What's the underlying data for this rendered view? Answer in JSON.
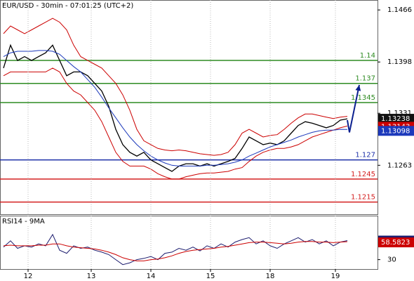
{
  "chart_data": [
    {
      "type": "line",
      "title": "EUR/USD - 30min - 07:01:25 (UTC+2)",
      "x": [
        0,
        1,
        2,
        3,
        4,
        5,
        6,
        7,
        8,
        9,
        10,
        11,
        12,
        13,
        14,
        15,
        16,
        17,
        18,
        19,
        20,
        21,
        22,
        23,
        24,
        25,
        26,
        27,
        28,
        29,
        30,
        31,
        32,
        33,
        34,
        35,
        36,
        37,
        38,
        39,
        40,
        41,
        42,
        43,
        44,
        45,
        46,
        47,
        48,
        49
      ],
      "xlim": [
        -0.5,
        53.3
      ],
      "series": [
        {
          "name": "close",
          "color": "#000000",
          "box": true,
          "values": [
            1.139,
            1.142,
            1.14,
            1.1405,
            1.14,
            1.1405,
            1.141,
            1.142,
            1.14,
            1.138,
            1.1385,
            1.1385,
            1.138,
            1.137,
            1.136,
            1.134,
            1.131,
            1.129,
            1.128,
            1.1275,
            1.128,
            1.127,
            1.1265,
            1.126,
            1.1255,
            1.1262,
            1.1265,
            1.1265,
            1.1262,
            1.1265,
            1.1262,
            1.1265,
            1.1268,
            1.1272,
            1.1285,
            1.13,
            1.1295,
            1.129,
            1.1292,
            1.129,
            1.1295,
            1.1305,
            1.1315,
            1.132,
            1.1318,
            1.1315,
            1.1312,
            1.1315,
            1.1322,
            1.13238
          ]
        },
        {
          "name": "upper",
          "color": "#cc0000",
          "box": false,
          "values": [
            1.1435,
            1.1445,
            1.144,
            1.1435,
            1.144,
            1.1445,
            1.145,
            1.1455,
            1.145,
            1.144,
            1.142,
            1.1405,
            1.14,
            1.1395,
            1.139,
            1.138,
            1.137,
            1.1355,
            1.1335,
            1.131,
            1.1295,
            1.129,
            1.1285,
            1.1283,
            1.1282,
            1.1283,
            1.1282,
            1.128,
            1.1278,
            1.1277,
            1.1276,
            1.1277,
            1.128,
            1.129,
            1.1305,
            1.131,
            1.1305,
            1.13,
            1.1302,
            1.1303,
            1.131,
            1.1318,
            1.1325,
            1.133,
            1.133,
            1.1328,
            1.1326,
            1.1324,
            1.1326,
            1.1327
          ]
        },
        {
          "name": "lower",
          "color": "#cc0000",
          "box": true,
          "values": [
            1.138,
            1.1385,
            1.1385,
            1.1385,
            1.1385,
            1.1385,
            1.1385,
            1.139,
            1.1385,
            1.137,
            1.136,
            1.1355,
            1.1345,
            1.1335,
            1.132,
            1.13,
            1.128,
            1.1268,
            1.1262,
            1.1262,
            1.1262,
            1.1258,
            1.1252,
            1.1248,
            1.1245,
            1.1245,
            1.1248,
            1.125,
            1.1252,
            1.1253,
            1.1253,
            1.1254,
            1.1255,
            1.1258,
            1.126,
            1.1268,
            1.1275,
            1.128,
            1.1283,
            1.1285,
            1.1285,
            1.1287,
            1.129,
            1.1295,
            1.13,
            1.1303,
            1.1306,
            1.1309,
            1.1312,
            1.13143
          ]
        },
        {
          "name": "ma",
          "color": "#1c39bb",
          "box": true,
          "values": [
            1.1405,
            1.141,
            1.1412,
            1.1412,
            1.1412,
            1.1413,
            1.1413,
            1.1412,
            1.1408,
            1.14,
            1.1392,
            1.1385,
            1.1375,
            1.1365,
            1.1352,
            1.1338,
            1.1325,
            1.1312,
            1.13,
            1.129,
            1.1282,
            1.1275,
            1.127,
            1.1266,
            1.1263,
            1.1262,
            1.1262,
            1.1262,
            1.1262,
            1.1263,
            1.1263,
            1.1264,
            1.1265,
            1.1267,
            1.127,
            1.1275,
            1.1279,
            1.1283,
            1.1287,
            1.129,
            1.1293,
            1.1296,
            1.13,
            1.1303,
            1.1306,
            1.1308,
            1.1309,
            1.1309,
            1.131,
            1.13098
          ]
        }
      ],
      "projection": {
        "color": "#0a1f8f",
        "x": [
          49,
          49.3,
          50.7
        ],
        "values": [
          1.1322,
          1.1306,
          1.1368
        ]
      },
      "levels": [
        {
          "value": 1.14,
          "color": "#2e8b22"
        },
        {
          "value": 1.137,
          "color": "#2e8b22"
        },
        {
          "value": 1.1345,
          "color": "#2e8b22"
        },
        {
          "value": 1.127,
          "color": "#1c2fa8"
        },
        {
          "value": 1.1245,
          "color": "#d42020"
        },
        {
          "value": 1.1215,
          "color": "#d42020"
        }
      ],
      "ylim": [
        1.1199,
        1.1479
      ],
      "yticks": [
        1.1466,
        1.1398,
        1.1331,
        1.1263
      ]
    },
    {
      "type": "line",
      "title": "RSI14 - 9MA",
      "x": [
        0,
        1,
        2,
        3,
        4,
        5,
        6,
        7,
        8,
        9,
        10,
        11,
        12,
        13,
        14,
        15,
        16,
        17,
        18,
        19,
        20,
        21,
        22,
        23,
        24,
        25,
        26,
        27,
        28,
        29,
        30,
        31,
        32,
        33,
        34,
        35,
        36,
        37,
        38,
        39,
        40,
        41,
        42,
        43,
        44,
        45,
        46,
        47,
        48,
        49
      ],
      "xlim": [
        -0.5,
        53.3
      ],
      "series": [
        {
          "name": "rsi",
          "color": "#1c1c6e",
          "box": true,
          "values": [
            50,
            60,
            48,
            52,
            50,
            55,
            52,
            70,
            45,
            40,
            52,
            48,
            50,
            45,
            42,
            38,
            30,
            22,
            25,
            30,
            32,
            35,
            30,
            40,
            42,
            48,
            45,
            50,
            44,
            52,
            48,
            55,
            50,
            58,
            62,
            65,
            55,
            60,
            52,
            48,
            55,
            60,
            65,
            58,
            62,
            55,
            60,
            52,
            58,
            60.3401
          ]
        },
        {
          "name": "rsi-ma",
          "color": "#cc0000",
          "box": true,
          "values": [
            52,
            53,
            52,
            52,
            52,
            53,
            53,
            55,
            55,
            52,
            50,
            49,
            48,
            47,
            45,
            42,
            38,
            33,
            30,
            28,
            28,
            30,
            31,
            33,
            36,
            40,
            43,
            45,
            46,
            47,
            48,
            50,
            51,
            53,
            55,
            57,
            58,
            58,
            57,
            56,
            55,
            56,
            58,
            59,
            59,
            58,
            58,
            57,
            58,
            58.5823
          ]
        }
      ],
      "ylim": [
        15,
        100
      ],
      "yticks": [
        30
      ],
      "xticks": [
        {
          "value": 3.5,
          "label": "12"
        },
        {
          "value": 12.5,
          "label": "13"
        },
        {
          "value": 21,
          "label": "14"
        },
        {
          "value": 29.5,
          "label": "15"
        },
        {
          "value": 38,
          "label": "18"
        },
        {
          "value": 47.3,
          "label": "19"
        }
      ]
    }
  ]
}
